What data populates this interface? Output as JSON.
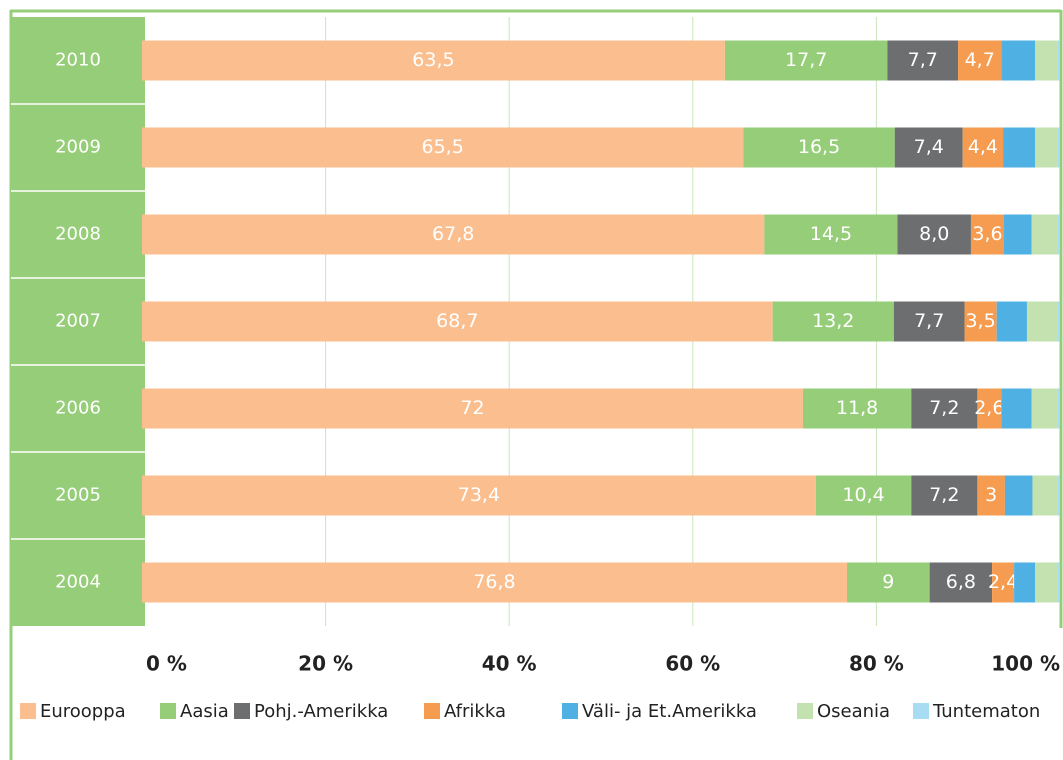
{
  "chart_data": {
    "type": "stacked_bar_horizontal",
    "categories": [
      "2010",
      "2009",
      "2008",
      "2007",
      "2006",
      "2005",
      "2004"
    ],
    "series": [
      {
        "name": "Eurooppa",
        "color": "#fbbf8f",
        "values": [
          63.5,
          65.5,
          67.8,
          68.7,
          72,
          73.4,
          76.8
        ],
        "value_labels": [
          "63,5",
          "65,5",
          "67,8",
          "68,7",
          "72",
          "73,4",
          "76,8"
        ]
      },
      {
        "name": "Aasia",
        "color": "#96cd78",
        "values": [
          17.7,
          16.5,
          14.5,
          13.2,
          11.8,
          10.4,
          9
        ],
        "value_labels": [
          "17,7",
          "16,5",
          "14,5",
          "13,2",
          "11,8",
          "10,4",
          "9"
        ]
      },
      {
        "name": "Pohj.-Amerikka",
        "color": "#6d6e70",
        "values": [
          7.7,
          7.4,
          8.0,
          7.7,
          7.2,
          7.2,
          6.8
        ],
        "value_labels": [
          "7,7",
          "7,4",
          "8,0",
          "7,7",
          "7,2",
          "7,2",
          "6,8"
        ]
      },
      {
        "name": "Afrikka",
        "color": "#f69c50",
        "values": [
          4.7,
          4.4,
          3.6,
          3.5,
          2.6,
          3,
          2.4
        ],
        "value_labels": [
          "4,7",
          "4,4",
          "3,6",
          "3,5",
          "2,6",
          "3",
          "2,4"
        ]
      },
      {
        "name": "Väli- ja Et.Amerikka",
        "color": "#4fb0e3",
        "values": [
          3.7,
          3.5,
          3.0,
          3.3,
          3.3,
          3.0,
          2.3
        ]
      },
      {
        "name": "Oseania",
        "color": "#c3e2b0",
        "values": [
          2.4,
          2.4,
          2.8,
          3.3,
          2.8,
          2.7,
          2.4
        ]
      },
      {
        "name": "Tuntematon",
        "color": "#a7dcf2",
        "values": [
          0.3,
          0.3,
          0.3,
          0.3,
          0.3,
          0.3,
          0.3
        ]
      }
    ],
    "xlim": [
      0,
      100
    ],
    "xticks": [
      {
        "value": 0,
        "label": "0 %"
      },
      {
        "value": 20,
        "label": "20 %"
      },
      {
        "value": 40,
        "label": "40 %"
      },
      {
        "value": 60,
        "label": "60 %"
      },
      {
        "value": 80,
        "label": "80 %"
      },
      {
        "value": 100,
        "label": "100 %"
      }
    ],
    "grid": true,
    "legend": "bottom"
  }
}
